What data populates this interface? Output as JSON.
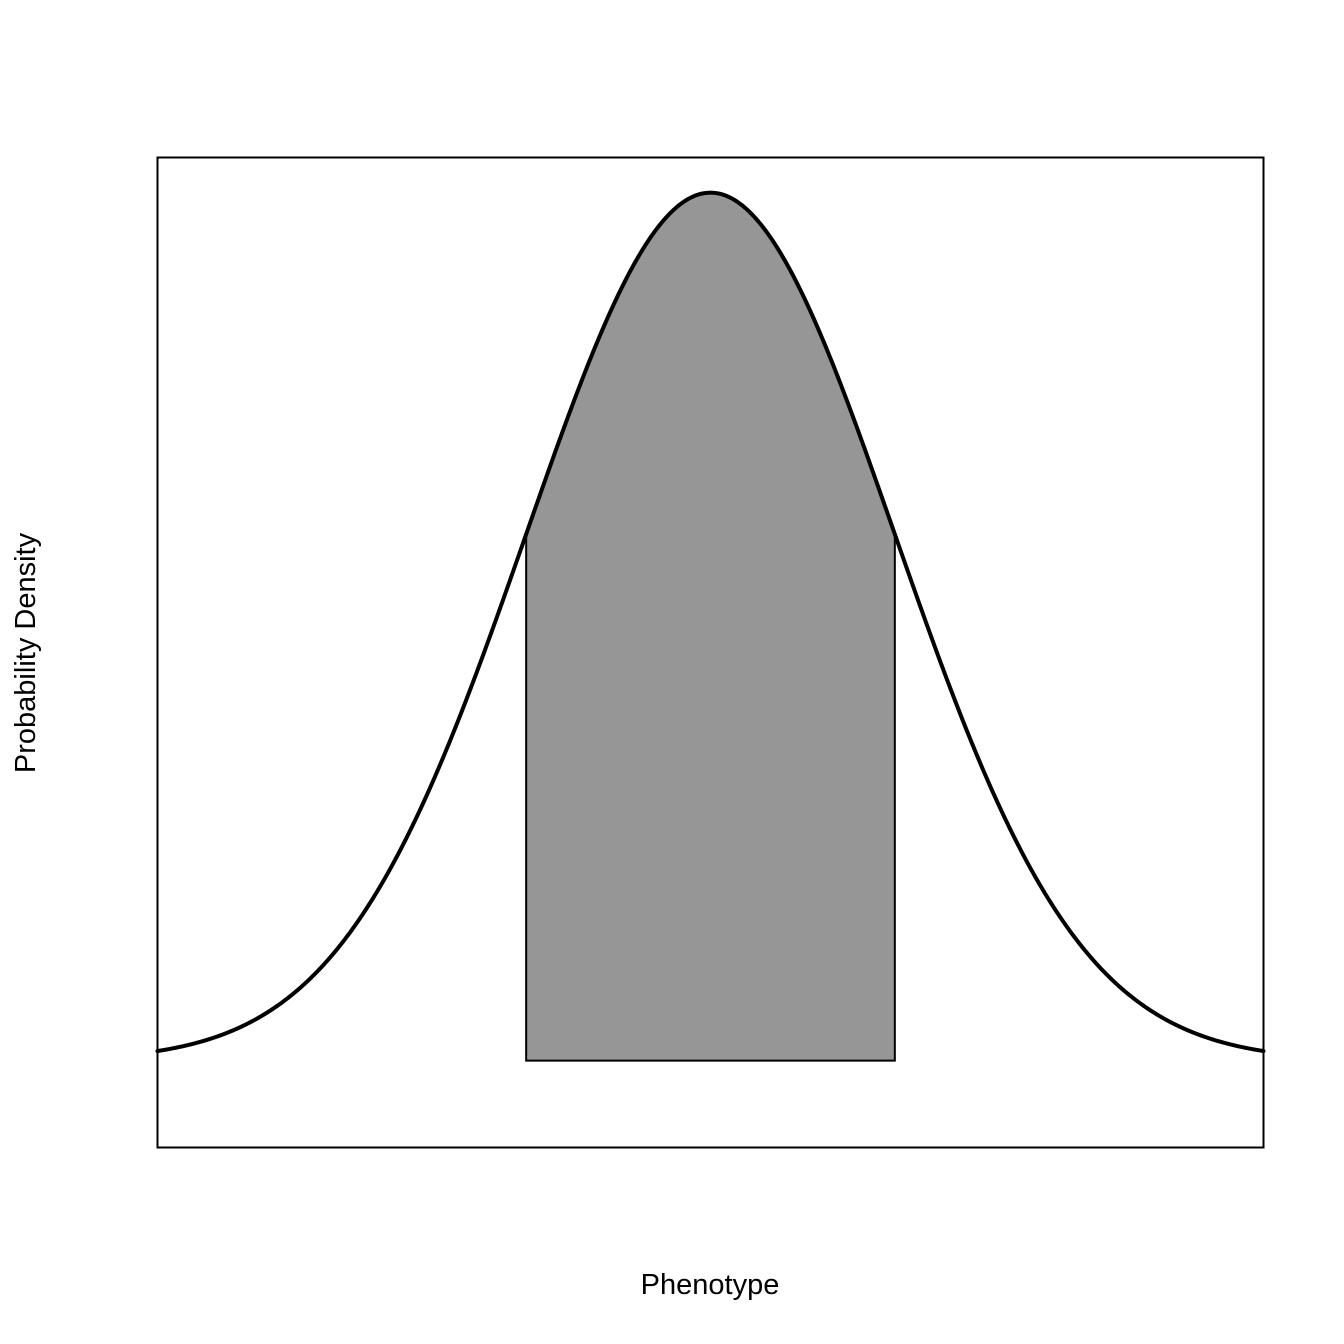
{
  "chart_data": {
    "type": "area",
    "title": "",
    "xlabel": "Phenotype",
    "ylabel": "Probability Density",
    "xlim": [
      -3.0,
      3.0
    ],
    "ylim": [
      -0.0399,
      0.4151
    ],
    "grid": false,
    "x_ticks_shown": false,
    "y_ticks_shown": false,
    "series": [
      {
        "kind": "curve",
        "distribution": "normal",
        "mean": 0,
        "sd": 1,
        "x_range": [
          -3.0,
          3.0
        ],
        "color": "#000000"
      },
      {
        "kind": "shaded-region",
        "x_range": [
          -1.0,
          1.0
        ],
        "color": "#969696"
      }
    ]
  }
}
